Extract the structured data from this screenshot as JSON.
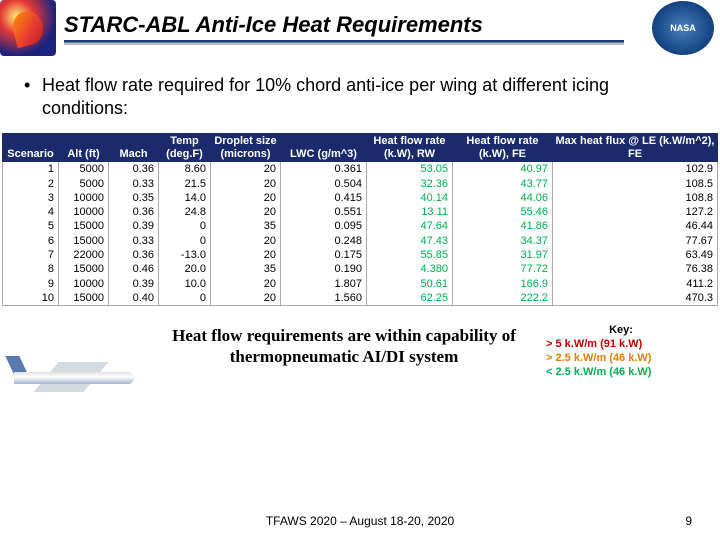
{
  "header": {
    "title": "STARC-ABL Anti-Ice Heat Requirements",
    "nasa_label": "NASA"
  },
  "bullet_text": "Heat flow rate required for 10% chord anti-ice per wing at different icing conditions:",
  "table": {
    "columns": [
      "Scenario",
      "Alt (ft)",
      "Mach",
      "Temp (deg.F)",
      "Droplet size (microns)",
      "LWC (g/m^3)",
      "Heat flow rate (k.W), RW",
      "Heat flow rate (k.W), FE",
      "Max heat flux @ LE (k.W/m^2), FE"
    ],
    "col_widths": [
      "56px",
      "50px",
      "50px",
      "52px",
      "70px",
      "86px",
      "86px",
      "100px",
      "auto"
    ],
    "rw_color": "#00b050",
    "fe_color": "#00b050",
    "rows": [
      [
        "1",
        "5000",
        "0.36",
        "8.60",
        "20",
        "0.361",
        "53.05",
        "40.97",
        "102.9"
      ],
      [
        "2",
        "5000",
        "0.33",
        "21.5",
        "20",
        "0.504",
        "32.36",
        "43.77",
        "108.5"
      ],
      [
        "3",
        "10000",
        "0.35",
        "14.0",
        "20",
        "0.415",
        "40.14",
        "44.06",
        "108.8"
      ],
      [
        "4",
        "10000",
        "0.36",
        "24.8",
        "20",
        "0.551",
        "13.11",
        "55.46",
        "127.2"
      ],
      [
        "5",
        "15000",
        "0.39",
        "0",
        "35",
        "0.095",
        "47.64",
        "41.86",
        "46.44"
      ],
      [
        "6",
        "15000",
        "0.33",
        "0",
        "20",
        "0.248",
        "47.43",
        "34.37",
        "77.67"
      ],
      [
        "7",
        "22000",
        "0.36",
        "-13.0",
        "20",
        "0.175",
        "55.85",
        "31.97",
        "63.49"
      ],
      [
        "8",
        "15000",
        "0.46",
        "20.0",
        "35",
        "0.190",
        "4.380",
        "77.72",
        "76.38"
      ],
      [
        "9",
        "10000",
        "0.39",
        "10.0",
        "20",
        "1.807",
        "50.61",
        "166.9",
        "411.2"
      ],
      [
        "10",
        "15000",
        "0.40",
        "0",
        "20",
        "1.560",
        "62.25",
        "222.2",
        "470.3"
      ]
    ]
  },
  "statement": "Heat flow requirements are within capability of thermopneumatic AI/DI system",
  "key": {
    "title": "Key:",
    "lines": [
      {
        "text": "> 5 k.W/m (91 k.W)",
        "color": "#c00000"
      },
      {
        "text": "> 2.5 k.W/m (46 k.W)",
        "color": "#e67e00"
      },
      {
        "text": "< 2.5 k.W/m (46 k.W)",
        "color": "#00b050"
      }
    ]
  },
  "footer": "TFAWS 2020 – August 18-20, 2020",
  "page_number": "9"
}
